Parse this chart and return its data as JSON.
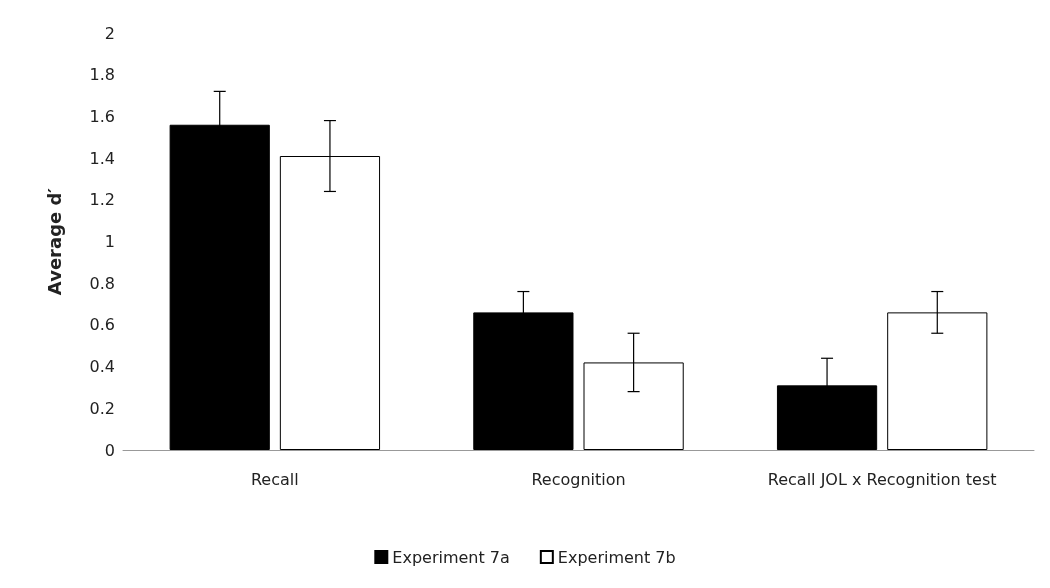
{
  "chart_data": {
    "type": "bar",
    "ylabel": "Average d′",
    "categories": [
      "Recall",
      "Recognition",
      "Recall JOL x Recognition test"
    ],
    "series": [
      {
        "name": "Experiment 7a",
        "color": "#000000",
        "values": [
          1.56,
          0.66,
          0.31
        ],
        "errors": [
          0.16,
          0.1,
          0.13
        ]
      },
      {
        "name": "Experiment 7b",
        "color": "#ffffff",
        "values": [
          1.41,
          0.42,
          0.66
        ],
        "errors": [
          0.17,
          0.14,
          0.1
        ]
      }
    ],
    "ylim": [
      0,
      2
    ],
    "yticks": [
      0,
      0.2,
      0.4,
      0.6,
      0.8,
      1,
      1.2,
      1.4,
      1.6,
      1.8,
      2
    ],
    "grid": false,
    "legend": "bottom"
  }
}
